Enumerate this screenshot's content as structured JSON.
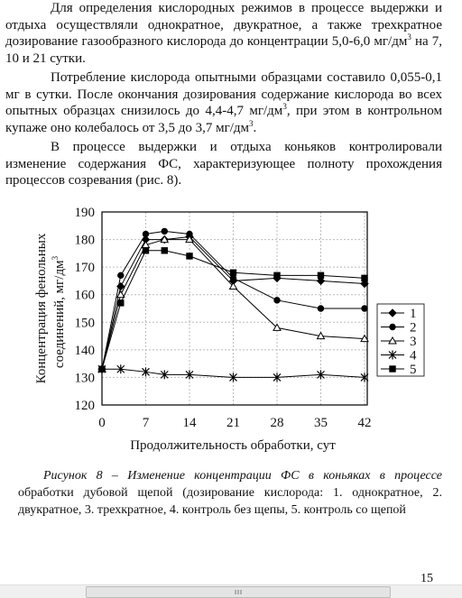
{
  "paragraphs": [
    [
      "Для определения кислородных режимов в процессе выдержки и отдыха осуществляли однократное, двукратное, а также трехкратное дозирование газообразного кислорода до концентрации 5,0-6,0 мг/дм",
      "3",
      " на 7, 10 и 21 сутки."
    ],
    [
      "Потребление кислорода опытными образцами составило 0,055-0,1 мг в сутки. После окончания дозирования содержание кислорода во всех опытных образцах снизилось до 4,4-4,7 мг/дм",
      "3",
      ", при этом в контрольном купаже оно колебалось от 3,5 до 3,7 мг/дм",
      "3",
      "."
    ],
    [
      "В процессе выдержки и отдыха коньяков контролировали изменение содержания ФС, характеризующее полноту прохождения процессов созревания (рис. 8)."
    ]
  ],
  "chart_data": {
    "type": "line",
    "y_label": [
      "Концентрация фенольных",
      "соединений, мг/дм",
      "3"
    ],
    "x_label": "Продолжительность обработки, сут",
    "x": [
      0,
      3,
      7,
      10,
      14,
      21,
      28,
      35,
      42
    ],
    "xlim": [
      0,
      42
    ],
    "xticks": [
      0,
      7,
      14,
      21,
      28,
      35,
      42
    ],
    "ylim": [
      120,
      190
    ],
    "yticks": [
      120,
      130,
      140,
      150,
      160,
      170,
      180,
      190
    ],
    "grid": true,
    "legend": "right",
    "series": [
      {
        "name": "1",
        "color": "#000000",
        "marker": "diamond",
        "values": [
          133,
          163,
          180,
          180,
          181,
          165,
          166,
          165,
          164
        ]
      },
      {
        "name": "2",
        "color": "#000000",
        "marker": "circle",
        "values": [
          133,
          167,
          182,
          183,
          182,
          166,
          158,
          155,
          155
        ]
      },
      {
        "name": "3",
        "color": "#000000",
        "marker": "triangle",
        "values": [
          133,
          160,
          178,
          180,
          180,
          163,
          148,
          145,
          144
        ]
      },
      {
        "name": "4",
        "color": "#000000",
        "marker": "cross",
        "values": [
          133,
          133,
          132,
          131,
          131,
          130,
          130,
          131,
          130
        ]
      },
      {
        "name": "5",
        "color": "#000000",
        "marker": "square",
        "values": [
          133,
          157,
          176,
          176,
          174,
          168,
          167,
          167,
          166
        ]
      }
    ]
  },
  "caption": [
    "Рисунок 8 – Изменение концентрации ФС в коньяках в процессе",
    "обработки дубовой щепой (дозирование кислорода: 1. однократное, 2. двукратное, 3. трехкратное, 4. контроль без щепы, 5. контроль со щепой"
  ],
  "page_number": "15"
}
